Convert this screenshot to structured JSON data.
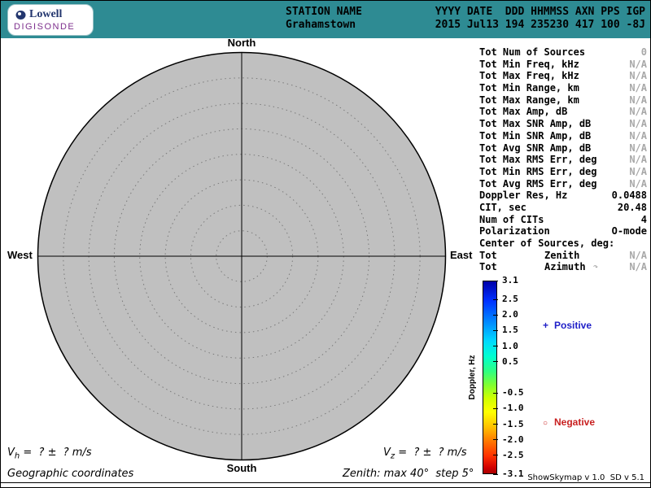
{
  "header": {
    "station_label": "STATION NAME",
    "station_value": "Grahamstown",
    "columns_label": "YYYY DATE  DDD HHMMSS AXN PPS IGP",
    "columns_value": "2015 Jul13 194 235230 417 100 -8J",
    "logo": {
      "name": "Lowell",
      "product": "DIGISONDE"
    }
  },
  "compass": {
    "north": "North",
    "south": "South",
    "west": "West",
    "east": "East"
  },
  "skymap": {
    "num_sources": 0,
    "max_zenith_deg": 40,
    "step_deg": 5,
    "circle_fill": "#C0C0C0"
  },
  "stats": {
    "rows": [
      {
        "label": "Tot Num of Sources",
        "value": "0",
        "muted": true
      },
      {
        "label": "Tot Min Freq, kHz",
        "value": "N/A",
        "muted": true
      },
      {
        "label": "Tot Max Freq, kHz",
        "value": "N/A",
        "muted": true
      },
      {
        "label": "Tot Min Range, km",
        "value": "N/A",
        "muted": true
      },
      {
        "label": "Tot Max Range, km",
        "value": "N/A",
        "muted": true
      },
      {
        "label": "Tot Max Amp, dB",
        "value": "N/A",
        "muted": true
      },
      {
        "label": "Tot Max SNR Amp, dB",
        "value": "N/A",
        "muted": true
      },
      {
        "label": "Tot Min SNR Amp, dB",
        "value": "N/A",
        "muted": true
      },
      {
        "label": "Tot Avg SNR Amp, dB",
        "value": "N/A",
        "muted": true
      },
      {
        "label": "Tot Max RMS Err, deg",
        "value": "N/A",
        "muted": true
      },
      {
        "label": "Tot Min RMS Err, deg",
        "value": "N/A",
        "muted": true
      },
      {
        "label": "Tot Avg RMS Err, deg",
        "value": "N/A",
        "muted": true
      },
      {
        "label": "Doppler Res, Hz",
        "value": "0.0488",
        "muted": false
      },
      {
        "label": "CIT, sec",
        "value": "20.48",
        "muted": false
      },
      {
        "label": "Num of CITs",
        "value": "4",
        "muted": false
      },
      {
        "label": "Polarization",
        "value": "O-mode",
        "muted": false
      },
      {
        "label": "Center of Sources, deg:",
        "value": "",
        "muted": false
      },
      {
        "label": "Tot",
        "mid": "Zenith",
        "value": "N/A",
        "muted": true
      },
      {
        "label": "Tot",
        "mid": "Azimuth",
        "value": "N/A",
        "muted": true,
        "icon": "azimuth-arrow-icon"
      }
    ]
  },
  "colorbar": {
    "title": "Doppler, Hz",
    "max": 3.1,
    "min": -3.1,
    "tick_values": [
      3.1,
      2.5,
      2.0,
      1.5,
      1.0,
      0.5,
      -0.5,
      -1.0,
      -1.5,
      -2.0,
      -2.5,
      -3.1
    ],
    "tick_labels": [
      "3.1",
      "2.5",
      "2.0",
      "1.5",
      "1.0",
      "0.5",
      "-0.5",
      "-1.0",
      "-1.5",
      "-2.0",
      "-2.5",
      "-3.1"
    ]
  },
  "legend": {
    "positive": {
      "symbol": "+",
      "label": "Positive",
      "color": "#2020C8"
    },
    "negative": {
      "symbol": "○",
      "label": "Negative",
      "color": "#C82020"
    }
  },
  "footer": {
    "vh": {
      "prefix": "V",
      "sub": "h",
      "rest": " =  ? ±  ? m/s"
    },
    "vz": {
      "prefix": "V",
      "sub": "z",
      "rest": " =  ? ±  ? m/s"
    },
    "coords": "Geographic coordinates",
    "zenith_note": "Zenith: max 40°  step 5°",
    "version": "ShowSkymap v 1.0  SD v 5.1"
  },
  "colors": {
    "header_bg": "#2E8B93",
    "circle_fill": "#C0C0C0",
    "positive": "#2020C8",
    "negative": "#C82020"
  }
}
